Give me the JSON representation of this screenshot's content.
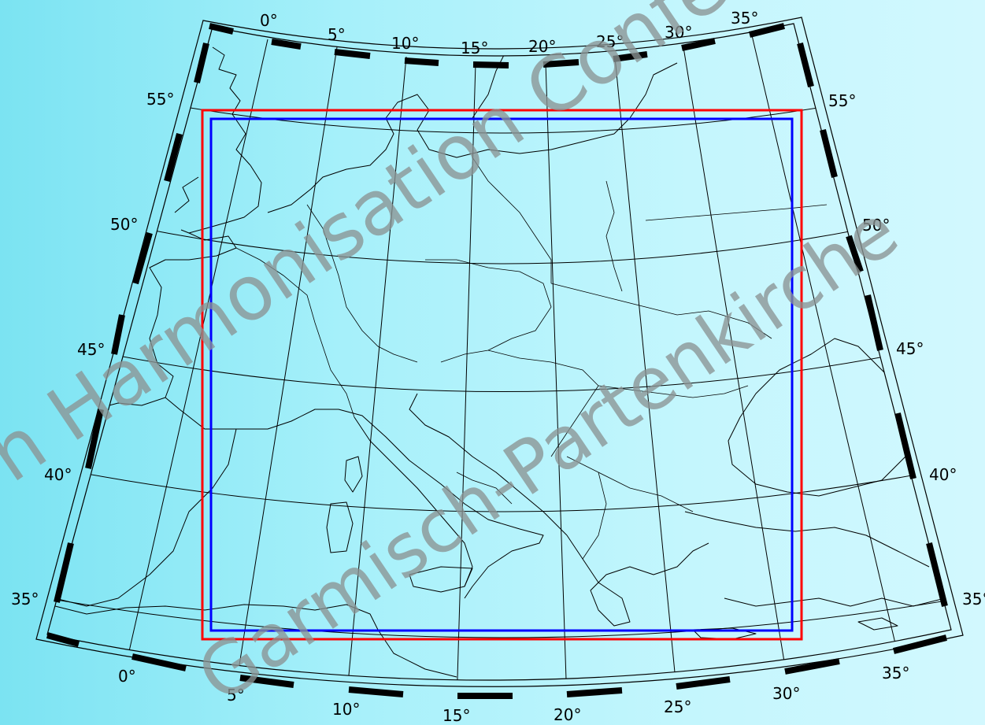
{
  "map": {
    "projection": "conic",
    "longitude_labels_top": [
      "0°",
      "5°",
      "10°",
      "15°",
      "20°",
      "25°",
      "30°",
      "35°"
    ],
    "longitude_labels_bottom": [
      "0°",
      "5°",
      "10°",
      "15°",
      "20°",
      "25°",
      "30°",
      "35°"
    ],
    "latitude_labels_left": [
      "55°",
      "50°",
      "45°",
      "40°",
      "35°"
    ],
    "latitude_labels_right": [
      "55°",
      "50°",
      "45°",
      "40°",
      "35°"
    ],
    "meridians_deg": [
      0,
      5,
      10,
      15,
      20,
      25,
      30,
      35
    ],
    "parallels_deg": [
      35,
      40,
      45,
      50,
      55
    ],
    "frame": {
      "style": "checkered black/white ticks"
    },
    "domains": [
      {
        "name": "outer-domain",
        "color": "#ff0000"
      },
      {
        "name": "inner-domain",
        "color": "#0000ff"
      }
    ],
    "coastline_color": "#000000"
  },
  "watermark": {
    "line1": "n Harmonisation Confe",
    "line2": "Garmisch-Partenkirche"
  }
}
